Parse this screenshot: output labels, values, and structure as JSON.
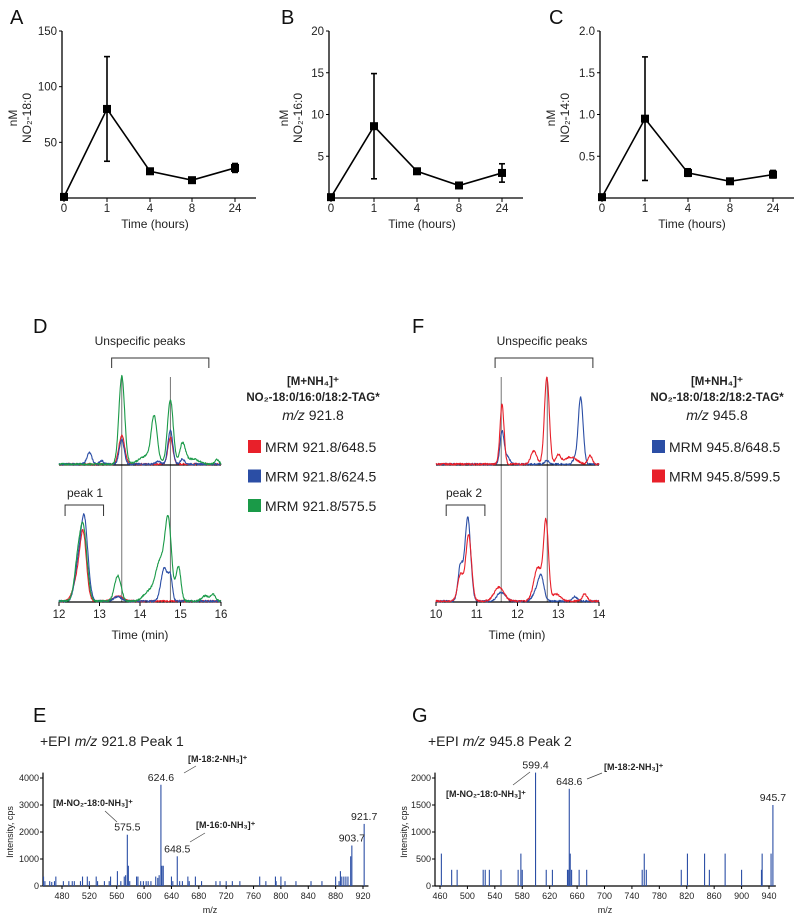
{
  "panel_letters": [
    "A",
    "B",
    "C",
    "D",
    "F",
    "E",
    "G"
  ],
  "chart_data": [
    {
      "id": "A",
      "type": "line",
      "xlabel": "Time (hours)",
      "ylabel_unit": "nM",
      "ylabel": "NO₂-18:0",
      "categories": [
        "0",
        "1",
        "4",
        "8",
        "24"
      ],
      "values": [
        1,
        80,
        24,
        16,
        27
      ],
      "error_low": [
        0,
        33,
        22,
        15,
        23
      ],
      "error_high": [
        2,
        127,
        26,
        17,
        31
      ],
      "yticks": [
        "50",
        "100",
        "150"
      ],
      "ytick_values": [
        50,
        100,
        150
      ],
      "ylim": [
        0,
        150
      ]
    },
    {
      "id": "B",
      "type": "line",
      "xlabel": "Time (hours)",
      "ylabel_unit": "nM",
      "ylabel": "NO₂-16:0",
      "categories": [
        "0",
        "1",
        "4",
        "8",
        "24"
      ],
      "values": [
        0.1,
        8.6,
        3.2,
        1.5,
        3.0
      ],
      "error_low": [
        0,
        2.3,
        3.0,
        1.3,
        1.9
      ],
      "error_high": [
        0.2,
        14.9,
        3.4,
        1.7,
        4.1
      ],
      "yticks": [
        "5",
        "10",
        "15",
        "20"
      ],
      "ytick_values": [
        5,
        10,
        15,
        20
      ],
      "ylim": [
        0,
        20
      ]
    },
    {
      "id": "C",
      "type": "line",
      "xlabel": "Time (hours)",
      "ylabel_unit": "nM",
      "ylabel": "NO₂-14:0",
      "categories": [
        "0",
        "1",
        "4",
        "8",
        "24"
      ],
      "values": [
        0.01,
        0.95,
        0.3,
        0.2,
        0.28
      ],
      "error_low": [
        0,
        0.21,
        0.26,
        0.18,
        0.24
      ],
      "error_high": [
        0.02,
        1.69,
        0.35,
        0.22,
        0.33
      ],
      "yticks": [
        "0.5",
        "1.0",
        "1.5",
        "2.0"
      ],
      "ytick_values": [
        0.5,
        1.0,
        1.5,
        2.0
      ],
      "ylim": [
        0,
        2.0
      ]
    },
    {
      "id": "D",
      "type": "line",
      "xlabel": "Time (min)",
      "xlim": [
        12,
        16
      ],
      "xticks": [
        "12",
        "13",
        "14",
        "15",
        "16"
      ],
      "bracket_top": "Unspecific peaks",
      "bracket_bottom": "peak 1",
      "bracket_top_range": [
        13.3,
        15.7
      ],
      "bracket_bottom_range": [
        12.15,
        13.1
      ],
      "markers": [
        13.55,
        14.75
      ],
      "legend_title": "[M+NH₄]⁺",
      "legend_compound": "NO₂-18:0/16:0/18:2-TAG*",
      "legend_mz_prefix": "m/z",
      "legend_mz": "921.8",
      "series": [
        {
          "name": "MRM 921.8/648.5",
          "color": "#e8202a",
          "top": [
            [
              13.55,
              0.33,
              0.07
            ],
            [
              14.75,
              0.3,
              0.06
            ]
          ],
          "bottom": [
            [
              12.6,
              0.72,
              0.08
            ],
            [
              12.45,
              0.25,
              0.1
            ],
            [
              13.45,
              0.06,
              0.12
            ]
          ]
        },
        {
          "name": "MRM 921.8/624.5",
          "color": "#2b4ea5",
          "top": [
            [
              12.75,
              0.13,
              0.06
            ],
            [
              13.05,
              0.04,
              0.05
            ],
            [
              13.55,
              0.28,
              0.06
            ],
            [
              14.45,
              0.03,
              0.06
            ],
            [
              14.75,
              0.38,
              0.06
            ],
            [
              15.05,
              0.06,
              0.05
            ]
          ],
          "bottom": [
            [
              12.62,
              0.95,
              0.09
            ],
            [
              12.45,
              0.3,
              0.08
            ],
            [
              13.45,
              0.05,
              0.1
            ],
            [
              14.6,
              0.38,
              0.08
            ],
            [
              14.75,
              0.25,
              0.05
            ]
          ]
        },
        {
          "name": "MRM 921.8/575.5",
          "color": "#1a9a48",
          "top": [
            [
              13.55,
              1.0,
              0.07
            ],
            [
              14.35,
              0.48,
              0.07
            ],
            [
              14.75,
              0.73,
              0.07
            ],
            [
              15.05,
              0.23,
              0.07
            ],
            [
              14.2,
              0.1,
              0.2
            ],
            [
              15.3,
              0.06,
              0.15
            ],
            [
              15.9,
              0.05,
              0.05
            ]
          ],
          "bottom": [
            [
              12.6,
              0.82,
              0.09
            ],
            [
              12.45,
              0.35,
              0.08
            ],
            [
              13.45,
              0.29,
              0.08
            ],
            [
              14.7,
              0.85,
              0.08
            ],
            [
              14.5,
              0.45,
              0.12
            ],
            [
              14.95,
              0.39,
              0.06
            ],
            [
              14.2,
              0.1,
              0.12
            ],
            [
              15.6,
              0.06,
              0.08
            ],
            [
              15.8,
              0.08,
              0.06
            ]
          ]
        }
      ]
    },
    {
      "id": "F",
      "type": "line",
      "xlabel": "Time (min)",
      "xlim": [
        10,
        14
      ],
      "xticks": [
        "10",
        "11",
        "12",
        "13",
        "14"
      ],
      "bracket_top": "Unspecific peaks",
      "bracket_bottom": "peak 2",
      "bracket_top_range": [
        11.45,
        13.85
      ],
      "bracket_bottom_range": [
        10.25,
        11.2
      ],
      "markers": [
        11.6,
        12.73
      ],
      "legend_title": "[M+NH₄]⁺",
      "legend_compound": "NO₂-18:0/18:2/18:2-TAG*",
      "legend_mz_prefix": "m/z",
      "legend_mz": "945.8",
      "series": [
        {
          "name": "MRM 945.8/648.5",
          "color": "#2b4ea5",
          "top": [
            [
              11.62,
              0.37,
              0.05
            ],
            [
              11.75,
              0.08,
              0.06
            ],
            [
              12.72,
              0.04,
              0.05
            ],
            [
              13.55,
              0.76,
              0.06
            ],
            [
              13.4,
              0.05,
              0.05
            ]
          ],
          "bottom": [
            [
              10.78,
              0.95,
              0.07
            ],
            [
              10.6,
              0.4,
              0.06
            ],
            [
              11.6,
              0.1,
              0.1
            ],
            [
              12.58,
              0.27,
              0.07
            ],
            [
              12.45,
              0.1,
              0.08
            ],
            [
              13.4,
              0.05,
              0.06
            ]
          ]
        },
        {
          "name": "MRM 945.8/599.5",
          "color": "#e8202a",
          "top": [
            [
              11.62,
              0.68,
              0.05
            ],
            [
              12.4,
              0.15,
              0.07
            ],
            [
              12.72,
              0.98,
              0.06
            ],
            [
              13.0,
              0.1,
              0.06
            ],
            [
              13.3,
              0.08,
              0.15
            ],
            [
              13.78,
              0.1,
              0.05
            ]
          ],
          "bottom": [
            [
              10.8,
              0.75,
              0.07
            ],
            [
              10.6,
              0.3,
              0.07
            ],
            [
              11.55,
              0.16,
              0.12
            ],
            [
              12.7,
              0.88,
              0.06
            ],
            [
              12.5,
              0.38,
              0.1
            ],
            [
              12.95,
              0.08,
              0.1
            ],
            [
              13.65,
              0.08,
              0.06
            ]
          ]
        }
      ]
    },
    {
      "id": "E",
      "type": "bar",
      "title_prefix": "+EPI",
      "title_mz_prefix": "m/z",
      "title_rest": "921.8 Peak 1",
      "xlabel": "m/z",
      "ylabel": "Intensity, cps",
      "xlim": [
        452,
        928
      ],
      "ylim": [
        0,
        4200
      ],
      "color": "#2b4ea5",
      "xticks": [
        "480",
        "520",
        "560",
        "600",
        "640",
        "680",
        "720",
        "760",
        "800",
        "840",
        "880",
        "920"
      ],
      "xtick_values": [
        480,
        520,
        560,
        600,
        640,
        680,
        720,
        760,
        800,
        840,
        880,
        920
      ],
      "yticks": [
        "0",
        "1000",
        "2000",
        "3000",
        "4000"
      ],
      "ytick_values": [
        0,
        1000,
        2000,
        3000,
        4000
      ],
      "peaks": [
        [
          453,
          350
        ],
        [
          455,
          180
        ],
        [
          462,
          180
        ],
        [
          465,
          150
        ],
        [
          469,
          180
        ],
        [
          471,
          350
        ],
        [
          482,
          180
        ],
        [
          490,
          180
        ],
        [
          495,
          180
        ],
        [
          498,
          180
        ],
        [
          507,
          180
        ],
        [
          510,
          350
        ],
        [
          517,
          350
        ],
        [
          520,
          180
        ],
        [
          530,
          350
        ],
        [
          532,
          180
        ],
        [
          542,
          180
        ],
        [
          549,
          180
        ],
        [
          551,
          350
        ],
        [
          561,
          550
        ],
        [
          566,
          180
        ],
        [
          571,
          350
        ],
        [
          573,
          400
        ],
        [
          575.5,
          1900
        ],
        [
          577,
          750
        ],
        [
          579,
          180
        ],
        [
          589,
          350
        ],
        [
          591,
          350
        ],
        [
          595,
          180
        ],
        [
          599,
          180
        ],
        [
          603,
          180
        ],
        [
          606,
          180
        ],
        [
          610,
          180
        ],
        [
          617,
          350
        ],
        [
          620,
          300
        ],
        [
          622,
          400
        ],
        [
          624.6,
          3750
        ],
        [
          626,
          750
        ],
        [
          628,
          750
        ],
        [
          640,
          350
        ],
        [
          642,
          180
        ],
        [
          648.5,
          1100
        ],
        [
          652,
          180
        ],
        [
          656,
          180
        ],
        [
          664,
          350
        ],
        [
          666,
          180
        ],
        [
          675,
          350
        ],
        [
          684,
          180
        ],
        [
          705,
          180
        ],
        [
          711,
          180
        ],
        [
          720,
          180
        ],
        [
          729,
          180
        ],
        [
          740,
          180
        ],
        [
          769,
          350
        ],
        [
          778,
          180
        ],
        [
          792,
          350
        ],
        [
          793,
          180
        ],
        [
          800,
          350
        ],
        [
          806,
          180
        ],
        [
          822,
          180
        ],
        [
          844,
          180
        ],
        [
          860,
          180
        ],
        [
          880,
          350
        ],
        [
          885,
          180
        ],
        [
          887,
          550
        ],
        [
          889,
          350
        ],
        [
          892,
          350
        ],
        [
          895,
          350
        ],
        [
          898,
          350
        ],
        [
          902,
          1100
        ],
        [
          903.7,
          1500
        ],
        [
          921.7,
          2300
        ]
      ],
      "labels": [
        {
          "text": "624.6",
          "mz": 624.6,
          "intensity": 3750
        },
        {
          "text": "575.5",
          "mz": 575.5,
          "intensity": 1900
        },
        {
          "text": "648.5",
          "mz": 648.5,
          "intensity": 1100
        },
        {
          "text": "903.7",
          "mz": 903.7,
          "intensity": 1500
        },
        {
          "text": "921.7",
          "mz": 921.7,
          "intensity": 2300
        }
      ],
      "annotations": [
        "[M-18:2-NH₃]⁺",
        "[M-NO₂-18:0-NH₃]⁺",
        "[M-16:0-NH₃]⁺"
      ]
    },
    {
      "id": "G",
      "type": "bar",
      "title_prefix": "+EPI",
      "title_mz_prefix": "m/z",
      "title_rest": "945.8 Peak 2",
      "xlabel": "m/z",
      "ylabel": "Intensity, cps",
      "xlim": [
        455,
        950
      ],
      "ylim": [
        0,
        2100
      ],
      "color": "#2b4ea5",
      "xticks": [
        "460",
        "500",
        "540",
        "580",
        "620",
        "660",
        "700",
        "740",
        "780",
        "820",
        "860",
        "900",
        "940"
      ],
      "xtick_values": [
        460,
        500,
        540,
        580,
        620,
        660,
        700,
        740,
        780,
        820,
        860,
        900,
        940
      ],
      "yticks": [
        "0",
        "500",
        "1000",
        "1500",
        "2000"
      ],
      "ytick_values": [
        0,
        500,
        1000,
        1500,
        2000
      ],
      "peaks": [
        [
          462,
          600
        ],
        [
          477,
          300
        ],
        [
          485,
          300
        ],
        [
          523,
          300
        ],
        [
          526,
          300
        ],
        [
          532,
          300
        ],
        [
          549,
          300
        ],
        [
          574,
          300
        ],
        [
          578,
          600
        ],
        [
          580,
          300
        ],
        [
          599.4,
          2100
        ],
        [
          615,
          300
        ],
        [
          624,
          300
        ],
        [
          646,
          300
        ],
        [
          647,
          300
        ],
        [
          648.6,
          1800
        ],
        [
          650,
          600
        ],
        [
          652,
          300
        ],
        [
          663,
          300
        ],
        [
          674,
          300
        ],
        [
          755,
          300
        ],
        [
          758,
          600
        ],
        [
          761,
          300
        ],
        [
          812,
          300
        ],
        [
          821,
          600
        ],
        [
          846,
          600
        ],
        [
          853,
          300
        ],
        [
          876,
          600
        ],
        [
          900,
          300
        ],
        [
          929,
          300
        ],
        [
          930,
          600
        ],
        [
          943,
          600
        ],
        [
          945.7,
          1500
        ]
      ],
      "labels": [
        {
          "text": "599.4",
          "mz": 599.4,
          "intensity": 2100
        },
        {
          "text": "648.6",
          "mz": 648.6,
          "intensity": 1800
        },
        {
          "text": "945.7",
          "mz": 945.7,
          "intensity": 1500
        }
      ],
      "annotations": [
        "[M-NO₂-18:0-NH₃]⁺",
        "[M-18:2-NH₃]⁺"
      ]
    }
  ]
}
